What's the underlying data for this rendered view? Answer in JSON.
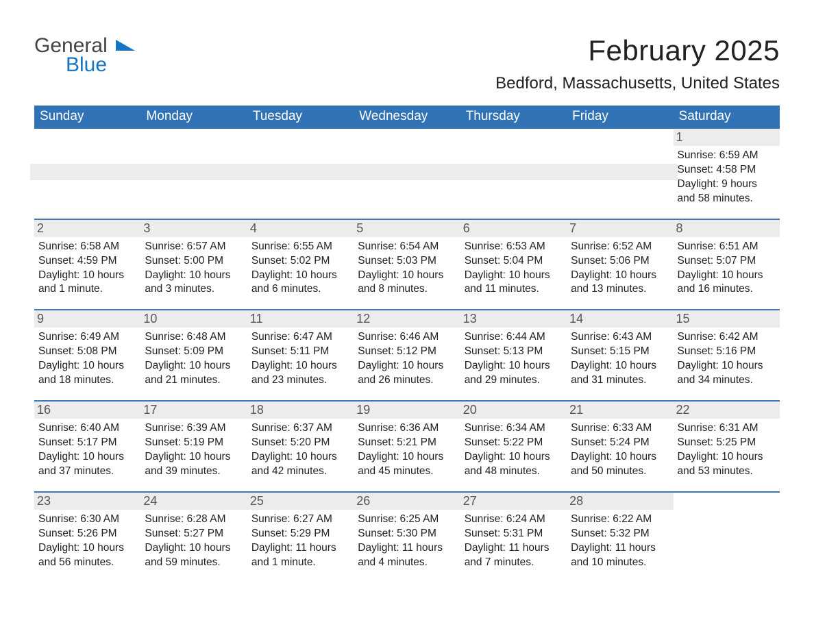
{
  "logo": {
    "text1": "General",
    "text2": "Blue",
    "accent": "#1676c6"
  },
  "title": "February 2025",
  "location": "Bedford, Massachusetts, United States",
  "header_bg": "#3072b3",
  "header_fg": "#ffffff",
  "row_accent": "#3a78b8",
  "daynum_bg": "#ececec",
  "background": "#ffffff",
  "weekdays": [
    "Sunday",
    "Monday",
    "Tuesday",
    "Wednesday",
    "Thursday",
    "Friday",
    "Saturday"
  ],
  "weeks": [
    [
      null,
      null,
      null,
      null,
      null,
      null,
      {
        "n": "1",
        "sr": "6:59 AM",
        "ss": "4:58 PM",
        "dl": "9 hours and 58 minutes."
      }
    ],
    [
      {
        "n": "2",
        "sr": "6:58 AM",
        "ss": "4:59 PM",
        "dl": "10 hours and 1 minute."
      },
      {
        "n": "3",
        "sr": "6:57 AM",
        "ss": "5:00 PM",
        "dl": "10 hours and 3 minutes."
      },
      {
        "n": "4",
        "sr": "6:55 AM",
        "ss": "5:02 PM",
        "dl": "10 hours and 6 minutes."
      },
      {
        "n": "5",
        "sr": "6:54 AM",
        "ss": "5:03 PM",
        "dl": "10 hours and 8 minutes."
      },
      {
        "n": "6",
        "sr": "6:53 AM",
        "ss": "5:04 PM",
        "dl": "10 hours and 11 minutes."
      },
      {
        "n": "7",
        "sr": "6:52 AM",
        "ss": "5:06 PM",
        "dl": "10 hours and 13 minutes."
      },
      {
        "n": "8",
        "sr": "6:51 AM",
        "ss": "5:07 PM",
        "dl": "10 hours and 16 minutes."
      }
    ],
    [
      {
        "n": "9",
        "sr": "6:49 AM",
        "ss": "5:08 PM",
        "dl": "10 hours and 18 minutes."
      },
      {
        "n": "10",
        "sr": "6:48 AM",
        "ss": "5:09 PM",
        "dl": "10 hours and 21 minutes."
      },
      {
        "n": "11",
        "sr": "6:47 AM",
        "ss": "5:11 PM",
        "dl": "10 hours and 23 minutes."
      },
      {
        "n": "12",
        "sr": "6:46 AM",
        "ss": "5:12 PM",
        "dl": "10 hours and 26 minutes."
      },
      {
        "n": "13",
        "sr": "6:44 AM",
        "ss": "5:13 PM",
        "dl": "10 hours and 29 minutes."
      },
      {
        "n": "14",
        "sr": "6:43 AM",
        "ss": "5:15 PM",
        "dl": "10 hours and 31 minutes."
      },
      {
        "n": "15",
        "sr": "6:42 AM",
        "ss": "5:16 PM",
        "dl": "10 hours and 34 minutes."
      }
    ],
    [
      {
        "n": "16",
        "sr": "6:40 AM",
        "ss": "5:17 PM",
        "dl": "10 hours and 37 minutes."
      },
      {
        "n": "17",
        "sr": "6:39 AM",
        "ss": "5:19 PM",
        "dl": "10 hours and 39 minutes."
      },
      {
        "n": "18",
        "sr": "6:37 AM",
        "ss": "5:20 PM",
        "dl": "10 hours and 42 minutes."
      },
      {
        "n": "19",
        "sr": "6:36 AM",
        "ss": "5:21 PM",
        "dl": "10 hours and 45 minutes."
      },
      {
        "n": "20",
        "sr": "6:34 AM",
        "ss": "5:22 PM",
        "dl": "10 hours and 48 minutes."
      },
      {
        "n": "21",
        "sr": "6:33 AM",
        "ss": "5:24 PM",
        "dl": "10 hours and 50 minutes."
      },
      {
        "n": "22",
        "sr": "6:31 AM",
        "ss": "5:25 PM",
        "dl": "10 hours and 53 minutes."
      }
    ],
    [
      {
        "n": "23",
        "sr": "6:30 AM",
        "ss": "5:26 PM",
        "dl": "10 hours and 56 minutes."
      },
      {
        "n": "24",
        "sr": "6:28 AM",
        "ss": "5:27 PM",
        "dl": "10 hours and 59 minutes."
      },
      {
        "n": "25",
        "sr": "6:27 AM",
        "ss": "5:29 PM",
        "dl": "11 hours and 1 minute."
      },
      {
        "n": "26",
        "sr": "6:25 AM",
        "ss": "5:30 PM",
        "dl": "11 hours and 4 minutes."
      },
      {
        "n": "27",
        "sr": "6:24 AM",
        "ss": "5:31 PM",
        "dl": "11 hours and 7 minutes."
      },
      {
        "n": "28",
        "sr": "6:22 AM",
        "ss": "5:32 PM",
        "dl": "11 hours and 10 minutes."
      },
      null
    ]
  ],
  "labels": {
    "sunrise": "Sunrise:",
    "sunset": "Sunset:",
    "daylight": "Daylight:"
  }
}
